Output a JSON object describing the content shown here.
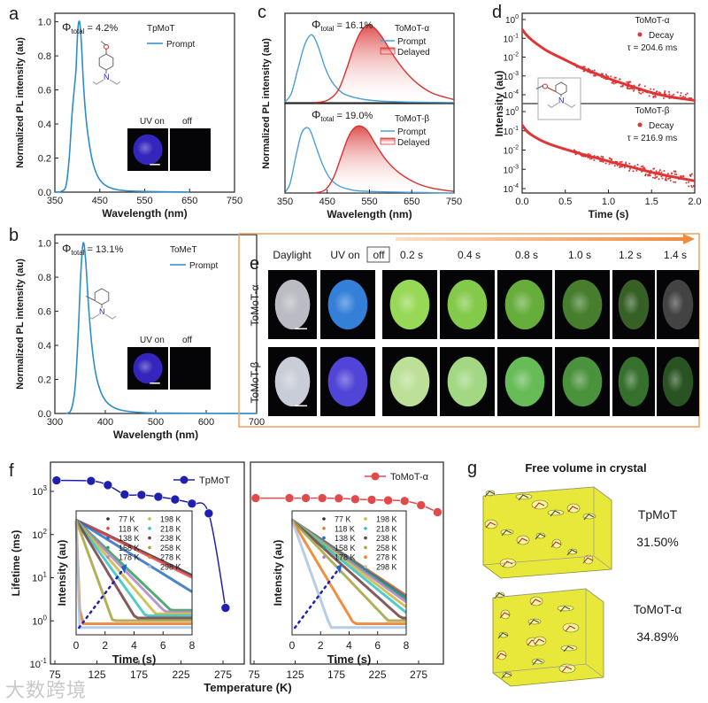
{
  "panel_letters": {
    "a": "a",
    "b": "b",
    "c": "c",
    "d": "d",
    "e": "e",
    "f": "f",
    "g": "g"
  },
  "chart_data": [
    {
      "panel": "a",
      "type": "line",
      "xlabel": "Wavelength (nm)",
      "ylabel": "Normalized PL intensity (au)",
      "xlim": [
        350,
        750
      ],
      "xticks": [
        "350",
        "450",
        "550",
        "650",
        "750"
      ],
      "ylim": [
        0,
        1.05
      ],
      "yticks": [
        "0.0",
        "0.2",
        "0.4",
        "0.6",
        "0.8",
        "1.0"
      ],
      "phi_symbol": "Φ",
      "phi_sub": "total",
      "phi_value": " = 4.2%",
      "compound": "TpMoT",
      "inset_labels": [
        "UV on",
        "off"
      ],
      "series": [
        {
          "name": "Prompt",
          "color": "#2b8ccf",
          "points": [
            [
              350,
              0
            ],
            [
              365,
              0.005
            ],
            [
              375,
              0.04
            ],
            [
              382,
              0.2
            ],
            [
              388,
              0.45
            ],
            [
              393,
              0.6
            ],
            [
              397,
              0.72
            ],
            [
              401,
              0.95
            ],
            [
              405,
              1.0
            ],
            [
              409,
              0.88
            ],
            [
              414,
              0.62
            ],
            [
              420,
              0.42
            ],
            [
              428,
              0.26
            ],
            [
              436,
              0.16
            ],
            [
              446,
              0.09
            ],
            [
              460,
              0.045
            ],
            [
              480,
              0.02
            ],
            [
              520,
              0.006
            ],
            [
              650,
              0
            ]
          ]
        }
      ]
    },
    {
      "panel": "b",
      "type": "line",
      "xlabel": "Wavelength (nm)",
      "ylabel": "Normalized PL intensity (au)",
      "xlim": [
        300,
        700
      ],
      "xticks": [
        "300",
        "400",
        "500",
        "600",
        "700"
      ],
      "ylim": [
        0,
        1.05
      ],
      "yticks": [
        "0.0",
        "0.2",
        "0.4",
        "0.6",
        "0.8",
        "1.0"
      ],
      "phi_symbol": "Φ",
      "phi_sub": "total",
      "phi_value": " = 13.1%",
      "compound": "ToMeT",
      "inset_labels": [
        "UV on",
        "off"
      ],
      "series": [
        {
          "name": "Prompt",
          "color": "#2b8ccf",
          "points": [
            [
              320,
              0
            ],
            [
              332,
              0.02
            ],
            [
              340,
              0.15
            ],
            [
              346,
              0.45
            ],
            [
              351,
              0.8
            ],
            [
              356,
              1.0
            ],
            [
              361,
              0.9
            ],
            [
              367,
              0.62
            ],
            [
              374,
              0.38
            ],
            [
              382,
              0.22
            ],
            [
              392,
              0.12
            ],
            [
              405,
              0.06
            ],
            [
              425,
              0.025
            ],
            [
              460,
              0.008
            ],
            [
              520,
              0.002
            ],
            [
              700,
              0
            ]
          ]
        }
      ]
    },
    {
      "panel": "c",
      "type": "line",
      "xlabel": "Wavelength (nm)",
      "ylabel": "Normalized PL intensity (au)",
      "xlim": [
        350,
        750
      ],
      "xticks": [
        "350",
        "450",
        "550",
        "650",
        "750"
      ],
      "subplots": [
        {
          "phi_symbol": "Φ",
          "phi_sub": "total",
          "phi_value": " = 16.1%",
          "compound": "ToMoT-α",
          "series": [
            {
              "name": "Prompt",
              "color": "#4a9fd8",
              "points": [
                [
                  350,
                  0.01
                ],
                [
                  365,
                  0.12
                ],
                [
                  380,
                  0.42
                ],
                [
                  395,
                  0.72
                ],
                [
                  408,
                  0.86
                ],
                [
                  418,
                  0.85
                ],
                [
                  430,
                  0.7
                ],
                [
                  445,
                  0.45
                ],
                [
                  460,
                  0.28
                ],
                [
                  480,
                  0.15
                ],
                [
                  500,
                  0.09
                ],
                [
                  540,
                  0.04
                ],
                [
                  600,
                  0.015
                ],
                [
                  750,
                  0
                ]
              ]
            },
            {
              "name": "Delayed",
              "color": "#d93030",
              "points": [
                [
                  420,
                  0
                ],
                [
                  450,
                  0.03
                ],
                [
                  475,
                  0.15
                ],
                [
                  495,
                  0.42
                ],
                [
                  512,
                  0.7
                ],
                [
                  528,
                  0.9
                ],
                [
                  545,
                  1.0
                ],
                [
                  560,
                  0.97
                ],
                [
                  580,
                  0.84
                ],
                [
                  605,
                  0.62
                ],
                [
                  635,
                  0.4
                ],
                [
                  665,
                  0.24
                ],
                [
                  700,
                  0.12
                ],
                [
                  750,
                  0.04
                ]
              ]
            }
          ]
        },
        {
          "phi_symbol": "Φ",
          "phi_sub": "total",
          "phi_value": " = 19.0%",
          "compound": "ToMoT-β",
          "series": [
            {
              "name": "Prompt",
              "color": "#4a9fd8",
              "points": [
                [
                  350,
                  0.01
                ],
                [
                  362,
                  0.12
                ],
                [
                  375,
                  0.45
                ],
                [
                  388,
                  0.75
                ],
                [
                  400,
                  0.84
                ],
                [
                  410,
                  0.8
                ],
                [
                  422,
                  0.62
                ],
                [
                  438,
                  0.38
                ],
                [
                  455,
                  0.2
                ],
                [
                  475,
                  0.1
                ],
                [
                  500,
                  0.05
                ],
                [
                  550,
                  0.02
                ],
                [
                  750,
                  0
                ]
              ]
            },
            {
              "name": "Delayed",
              "color": "#d93030",
              "points": [
                [
                  420,
                  0
                ],
                [
                  445,
                  0.04
                ],
                [
                  465,
                  0.2
                ],
                [
                  485,
                  0.5
                ],
                [
                  500,
                  0.72
                ],
                [
                  515,
                  0.84
                ],
                [
                  530,
                  0.86
                ],
                [
                  545,
                  0.8
                ],
                [
                  565,
                  0.62
                ],
                [
                  590,
                  0.42
                ],
                [
                  620,
                  0.26
                ],
                [
                  660,
                  0.13
                ],
                [
                  700,
                  0.06
                ],
                [
                  750,
                  0.02
                ]
              ]
            }
          ]
        }
      ]
    },
    {
      "panel": "d",
      "type": "scatter",
      "xlabel": "Time (s)",
      "ylabel": "Intensity (au)",
      "xlim": [
        0,
        2.0
      ],
      "xticks": [
        "0.0",
        "0.5",
        "1.0",
        "1.5",
        "2.0"
      ],
      "ytick_base": "10",
      "yticks_exp": [
        "0",
        "-1",
        "-2",
        "-3",
        "-4"
      ],
      "yscale": "log",
      "subplots": [
        {
          "compound": "ToMoT-α",
          "legend": "Decay",
          "tau": "τ = 204.6 ms",
          "color": "#e03535",
          "points": [
            [
              0,
              0.3
            ],
            [
              0.05,
              0.15
            ],
            [
              0.1,
              0.09
            ],
            [
              0.2,
              0.04
            ],
            [
              0.3,
              0.02
            ],
            [
              0.5,
              0.007
            ],
            [
              0.7,
              0.0025
            ],
            [
              0.9,
              0.0011
            ],
            [
              1.1,
              0.0005
            ],
            [
              1.3,
              0.00025
            ],
            [
              1.5,
              0.00013
            ],
            [
              1.7,
              8e-05
            ],
            [
              2.0,
              5e-05
            ]
          ]
        },
        {
          "compound": "ToMoT-β",
          "legend": "Decay",
          "tau": "τ = 216.9 ms",
          "color": "#e03535",
          "points": [
            [
              0,
              0.2
            ],
            [
              0.05,
              0.1
            ],
            [
              0.1,
              0.065
            ],
            [
              0.2,
              0.035
            ],
            [
              0.3,
              0.022
            ],
            [
              0.5,
              0.011
            ],
            [
              0.7,
              0.006
            ],
            [
              0.9,
              0.0035
            ],
            [
              1.1,
              0.002
            ],
            [
              1.3,
              0.0012
            ],
            [
              1.5,
              0.0007
            ],
            [
              1.7,
              0.00045
            ],
            [
              2.0,
              0.00025
            ]
          ]
        }
      ]
    },
    {
      "panel": "f-left",
      "type": "line",
      "xlabel": "Temperature (K)",
      "ylabel": "Lifetime (ms)",
      "xlim": [
        75,
        300
      ],
      "xticks": [
        "75",
        "125",
        "175",
        "225",
        "275"
      ],
      "ytick_base": "10",
      "yticks_exp": [
        "-1",
        "0",
        "1",
        "2",
        "3"
      ],
      "yscale": "log",
      "ylim": [
        0.1,
        5000
      ],
      "series": [
        {
          "name": "TpMoT",
          "color": "#1f1fb0",
          "x": [
            77,
            118,
            138,
            158,
            178,
            198,
            218,
            238,
            258,
            278
          ],
          "y": [
            1800,
            1750,
            1400,
            850,
            830,
            750,
            650,
            520,
            310,
            2
          ]
        }
      ],
      "inset": {
        "xlabel": "Time (s)",
        "ylabel": "Intensity (au)",
        "xlim": [
          0,
          8
        ],
        "xticks": [
          "0",
          "2",
          "4",
          "6",
          "8"
        ],
        "temperatures": [
          "77 K",
          "118 K",
          "138 K",
          "158 K",
          "178 K",
          "198 K",
          "218 K",
          "238 K",
          "258 K",
          "278 K",
          "298 K"
        ],
        "colors": [
          "#333333",
          "#e04848",
          "#2a6fc0",
          "#2f9e55",
          "#b083c8",
          "#c9b840",
          "#35c2c2",
          "#6e3d3d",
          "#a3a13c",
          "#f07a20",
          "#a9c3e3"
        ],
        "tau_s": [
          2.6,
          2.5,
          2.0,
          1.3,
          1.2,
          1.05,
          0.9,
          0.75,
          0.45,
          0.05,
          0.02
        ]
      }
    },
    {
      "panel": "f-right",
      "type": "line",
      "xlabel": "",
      "ylabel": "",
      "xlim": [
        75,
        300
      ],
      "xticks": [
        "75",
        "125",
        "175",
        "225",
        "275"
      ],
      "yscale": "log",
      "ylim": [
        0.1,
        5000
      ],
      "series": [
        {
          "name": "ToMoT-α",
          "color": "#e04a4a",
          "x": [
            77,
            118,
            138,
            158,
            178,
            198,
            218,
            238,
            258,
            278,
            298
          ],
          "y": [
            700,
            700,
            700,
            700,
            690,
            660,
            640,
            620,
            600,
            480,
            330
          ]
        }
      ],
      "inset": {
        "xlabel": "Time (s)",
        "ylabel": "Intensity (au)",
        "xlim": [
          0,
          8
        ],
        "xticks": [
          "0",
          "2",
          "4",
          "6",
          "8"
        ],
        "temperatures": [
          "77 K",
          "118 K",
          "138 K",
          "158 K",
          "178 K",
          "198 K",
          "218 K",
          "238 K",
          "258 K",
          "278 K",
          "298 K"
        ],
        "colors": [
          "#333333",
          "#e07a30",
          "#2a6fc0",
          "#2f9e55",
          "#b083c8",
          "#c9b840",
          "#35c2c2",
          "#6e3d3d",
          "#a3a13c",
          "#f07a20",
          "#a9c3e3"
        ],
        "tau_s": [
          1.9,
          1.9,
          1.85,
          1.8,
          1.75,
          1.65,
          1.55,
          1.4,
          1.2,
          0.75,
          0.45
        ]
      }
    }
  ],
  "panel_e": {
    "header": [
      "Daylight",
      "UV on",
      "off",
      "0.2 s",
      "0.4 s",
      "0.8 s",
      "1.0 s",
      "1.2 s",
      "1.4 s"
    ],
    "rows": [
      {
        "label": "ToMoT-α",
        "colors": [
          "#cfd0d8",
          "#3a8ef0",
          "#a8f060",
          "#92e052",
          "#72c042",
          "#4e8c32",
          "#3c6a2a",
          "#4a4a4a"
        ]
      },
      {
        "label": "ToMoT-β",
        "colors": [
          "#dfe3ee",
          "#5a4cf0",
          "#d0f8a8",
          "#b4f092",
          "#72d062",
          "#52a242",
          "#3c7c32",
          "#2e5c26"
        ]
      }
    ],
    "accent": "#f0a060"
  },
  "panel_g": {
    "title": "Free volume in crystal",
    "items": [
      {
        "name": "TpMoT",
        "value": "31.50%"
      },
      {
        "name": "ToMoT-α",
        "value": "34.89%"
      }
    ]
  },
  "watermark": "大数跨境"
}
